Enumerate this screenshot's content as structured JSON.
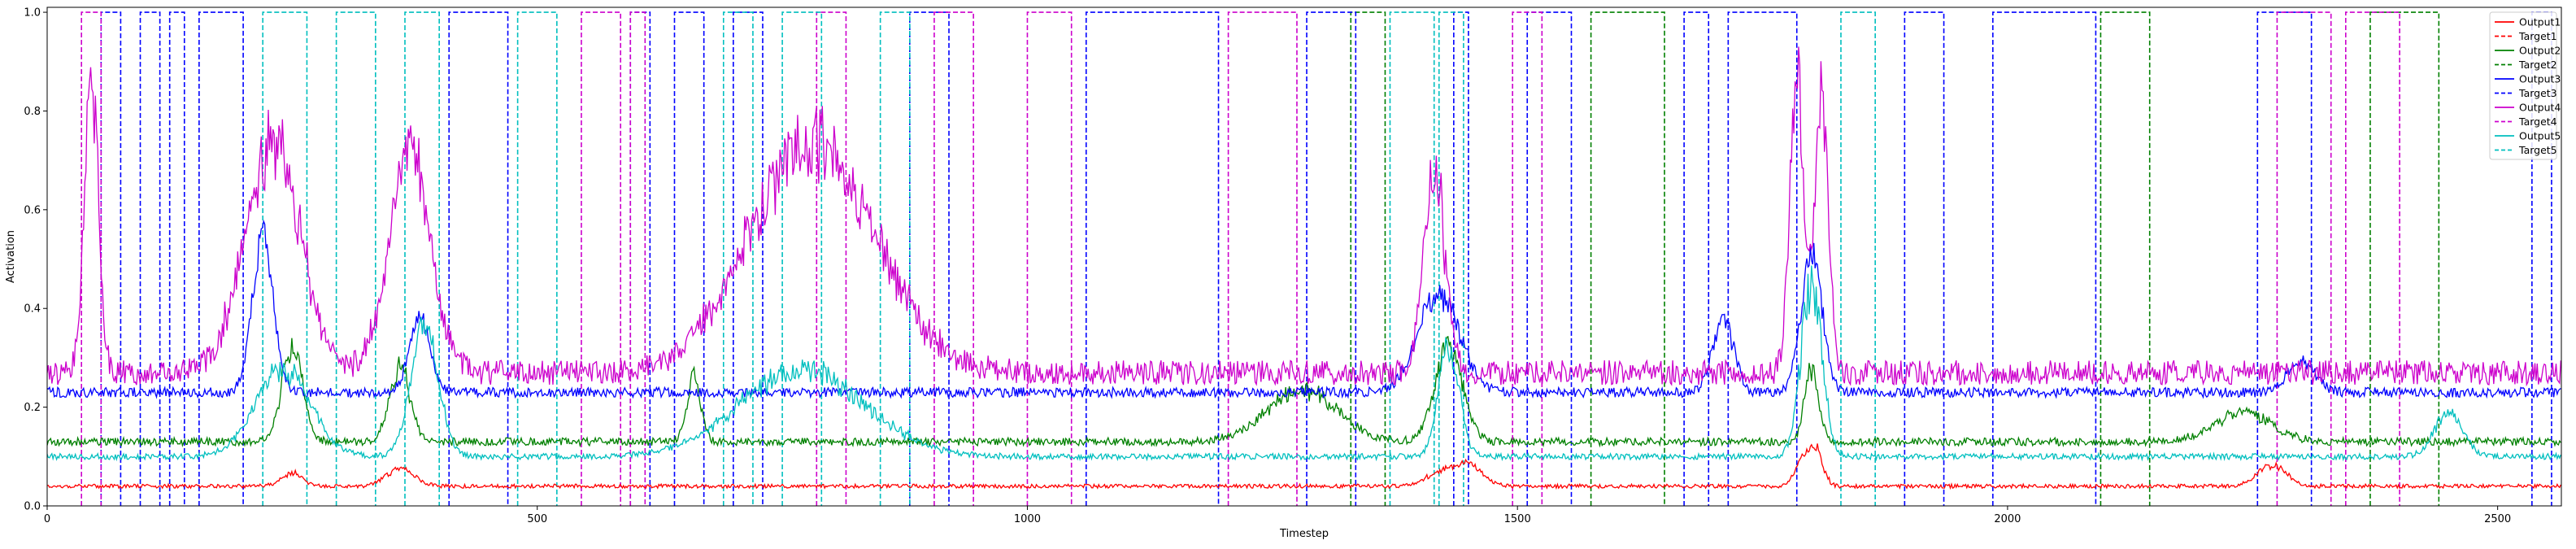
{
  "chart_data": {
    "type": "line",
    "title": "",
    "xlabel": "Timestep",
    "ylabel": "Activation",
    "xlim": [
      0,
      2565
    ],
    "ylim": [
      0,
      1.01
    ],
    "x_ticks": [
      0,
      500,
      1000,
      1500,
      2000,
      2500
    ],
    "y_ticks": [
      0.0,
      0.2,
      0.4,
      0.6,
      0.8,
      1.0
    ],
    "x_tick_labels": [
      "0",
      "500",
      "1000",
      "1500",
      "2000",
      "2500"
    ],
    "y_tick_labels": [
      "0.0",
      "0.2",
      "0.4",
      "0.6",
      "0.8",
      "1.0"
    ],
    "grid": false,
    "legend_position": "top-right",
    "series": [
      {
        "name": "Output1",
        "style": "solid",
        "color": "#ff0000",
        "baseline": 0.04,
        "noise": 0.004,
        "bumps": [
          [
            360,
            20,
            0.08
          ],
          [
            250,
            15,
            0.07
          ],
          [
            1450,
            20,
            0.09
          ],
          [
            1420,
            20,
            0.07
          ],
          [
            1805,
            10,
            0.12
          ],
          [
            2270,
            20,
            0.09
          ],
          [
            1790,
            10,
            0.1
          ]
        ]
      },
      {
        "name": "Target1",
        "style": "dashed",
        "color": "#ff0000",
        "segments": []
      },
      {
        "name": "Output2",
        "style": "solid",
        "color": "#008000",
        "baseline": 0.13,
        "noise": 0.008,
        "bumps": [
          [
            250,
            15,
            0.35
          ],
          [
            360,
            15,
            0.3
          ],
          [
            660,
            10,
            0.28
          ],
          [
            1280,
            50,
            0.25
          ],
          [
            1430,
            20,
            0.35
          ],
          [
            1800,
            10,
            0.3
          ],
          [
            2240,
            40,
            0.2
          ]
        ]
      },
      {
        "name": "Target2",
        "style": "dashed",
        "color": "#008000",
        "segments": [
          [
            1330,
            1365
          ],
          [
            1575,
            1650
          ],
          [
            2095,
            2145
          ],
          [
            2370,
            2440
          ]
        ]
      },
      {
        "name": "Output3",
        "style": "solid",
        "color": "#0000ff",
        "baseline": 0.23,
        "noise": 0.01,
        "bumps": [
          [
            220,
            15,
            0.6
          ],
          [
            380,
            15,
            0.4
          ],
          [
            1420,
            30,
            0.46
          ],
          [
            1710,
            15,
            0.4
          ],
          [
            1800,
            15,
            0.55
          ],
          [
            2300,
            20,
            0.3
          ]
        ]
      },
      {
        "name": "Target3",
        "style": "dashed",
        "color": "#0000ff",
        "segments": [
          [
            55,
            75
          ],
          [
            95,
            115
          ],
          [
            125,
            140
          ],
          [
            155,
            200
          ],
          [
            410,
            470
          ],
          [
            595,
            615
          ],
          [
            640,
            670
          ],
          [
            700,
            730
          ],
          [
            880,
            920
          ],
          [
            1060,
            1195
          ],
          [
            1285,
            1335
          ],
          [
            1435,
            1450
          ],
          [
            1510,
            1555
          ],
          [
            1670,
            1695
          ],
          [
            1715,
            1785
          ],
          [
            1895,
            1935
          ],
          [
            1985,
            2090
          ],
          [
            2255,
            2310
          ],
          [
            2535,
            2555
          ]
        ]
      },
      {
        "name": "Output4",
        "style": "solid",
        "color": "#cc00cc",
        "baseline": 0.27,
        "noise": 0.025,
        "bumps": [
          [
            45,
            10,
            0.95
          ],
          [
            230,
            40,
            0.8
          ],
          [
            370,
            30,
            0.78
          ],
          [
            780,
            90,
            0.8
          ],
          [
            1415,
            15,
            0.75
          ],
          [
            1785,
            10,
            0.95
          ],
          [
            1810,
            10,
            0.9
          ]
        ]
      },
      {
        "name": "Target4",
        "style": "dashed",
        "color": "#cc00cc",
        "segments": [
          [
            35,
            55
          ],
          [
            545,
            585
          ],
          [
            595,
            610
          ],
          [
            785,
            815
          ],
          [
            905,
            945
          ],
          [
            1000,
            1045
          ],
          [
            1205,
            1275
          ],
          [
            1495,
            1525
          ],
          [
            2275,
            2330
          ],
          [
            2345,
            2400
          ]
        ]
      },
      {
        "name": "Output5",
        "style": "solid",
        "color": "#00bfbf",
        "baseline": 0.1,
        "noise": 0.006,
        "bumps": [
          [
            240,
            40,
            0.3
          ],
          [
            385,
            20,
            0.4
          ],
          [
            770,
            90,
            0.3
          ],
          [
            1430,
            15,
            0.35
          ],
          [
            1800,
            15,
            0.5
          ],
          [
            2450,
            20,
            0.2
          ]
        ]
      },
      {
        "name": "Target5",
        "style": "dashed",
        "color": "#00bfbf",
        "segments": [
          [
            220,
            265
          ],
          [
            295,
            335
          ],
          [
            365,
            400
          ],
          [
            480,
            520
          ],
          [
            690,
            720
          ],
          [
            750,
            790
          ],
          [
            850,
            880
          ],
          [
            1370,
            1415
          ],
          [
            1420,
            1445
          ],
          [
            1830,
            1865
          ]
        ]
      }
    ]
  }
}
